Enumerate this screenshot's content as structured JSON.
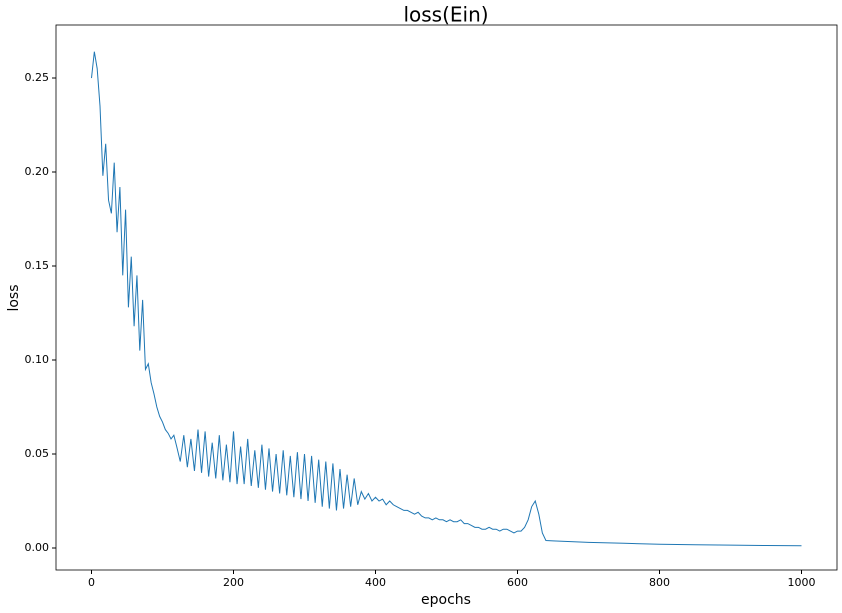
{
  "chart_data": {
    "type": "line",
    "title": "loss(Ein)",
    "x_label": "epochs",
    "y_label": "loss",
    "color": "#1f77b4",
    "grid": false,
    "x": [
      0,
      4,
      8,
      12,
      16,
      20,
      24,
      28,
      32,
      36,
      40,
      44,
      48,
      52,
      56,
      60,
      64,
      68,
      72,
      76,
      80,
      84,
      88,
      92,
      96,
      100,
      104,
      108,
      112,
      116,
      120,
      125,
      130,
      135,
      140,
      145,
      150,
      155,
      160,
      165,
      170,
      175,
      180,
      185,
      190,
      195,
      200,
      205,
      210,
      215,
      220,
      225,
      230,
      235,
      240,
      245,
      250,
      255,
      260,
      265,
      270,
      275,
      280,
      285,
      290,
      295,
      300,
      305,
      310,
      315,
      320,
      325,
      330,
      335,
      340,
      345,
      350,
      355,
      360,
      365,
      370,
      375,
      380,
      385,
      390,
      395,
      400,
      405,
      410,
      415,
      420,
      425,
      430,
      435,
      440,
      445,
      450,
      455,
      460,
      465,
      470,
      475,
      480,
      485,
      490,
      495,
      500,
      505,
      510,
      515,
      520,
      525,
      530,
      535,
      540,
      545,
      550,
      555,
      560,
      565,
      570,
      575,
      580,
      585,
      590,
      595,
      600,
      605,
      610,
      615,
      620,
      625,
      630,
      635,
      640,
      650,
      700,
      750,
      800,
      850,
      900,
      950,
      1000
    ],
    "values": [
      0.25,
      0.264,
      0.255,
      0.235,
      0.198,
      0.215,
      0.185,
      0.178,
      0.205,
      0.168,
      0.192,
      0.145,
      0.18,
      0.128,
      0.155,
      0.118,
      0.145,
      0.105,
      0.132,
      0.095,
      0.098,
      0.088,
      0.082,
      0.075,
      0.07,
      0.067,
      0.063,
      0.061,
      0.058,
      0.06,
      0.054,
      0.046,
      0.06,
      0.043,
      0.058,
      0.041,
      0.063,
      0.04,
      0.062,
      0.038,
      0.056,
      0.037,
      0.06,
      0.036,
      0.055,
      0.035,
      0.062,
      0.034,
      0.054,
      0.034,
      0.058,
      0.033,
      0.052,
      0.032,
      0.055,
      0.031,
      0.053,
      0.03,
      0.05,
      0.029,
      0.052,
      0.028,
      0.049,
      0.027,
      0.051,
      0.026,
      0.05,
      0.025,
      0.049,
      0.024,
      0.047,
      0.022,
      0.046,
      0.021,
      0.045,
      0.02,
      0.042,
      0.021,
      0.039,
      0.022,
      0.037,
      0.023,
      0.03,
      0.026,
      0.029,
      0.025,
      0.027,
      0.025,
      0.026,
      0.023,
      0.025,
      0.023,
      0.022,
      0.021,
      0.02,
      0.02,
      0.019,
      0.018,
      0.019,
      0.017,
      0.016,
      0.016,
      0.015,
      0.016,
      0.015,
      0.015,
      0.014,
      0.015,
      0.014,
      0.014,
      0.015,
      0.013,
      0.013,
      0.012,
      0.011,
      0.011,
      0.01,
      0.01,
      0.011,
      0.01,
      0.01,
      0.009,
      0.01,
      0.01,
      0.009,
      0.008,
      0.009,
      0.009,
      0.011,
      0.015,
      0.022,
      0.025,
      0.018,
      0.008,
      0.004,
      0.0038,
      0.003,
      0.0025,
      0.002,
      0.0017,
      0.0015,
      0.0013,
      0.0012
    ],
    "xlim": [
      -50,
      1050
    ],
    "ylim": [
      -0.0117,
      0.2782
    ],
    "xticks": [
      0,
      200,
      400,
      600,
      800,
      1000
    ],
    "yticks": [
      {
        "value": 0,
        "label": "0.00"
      },
      {
        "value": 0.05,
        "label": "0.05"
      },
      {
        "value": 0.1,
        "label": "0.10"
      },
      {
        "value": 0.15,
        "label": "0.15"
      },
      {
        "value": 0.2,
        "label": "0.20"
      },
      {
        "value": 0.25,
        "label": "0.25"
      }
    ]
  }
}
